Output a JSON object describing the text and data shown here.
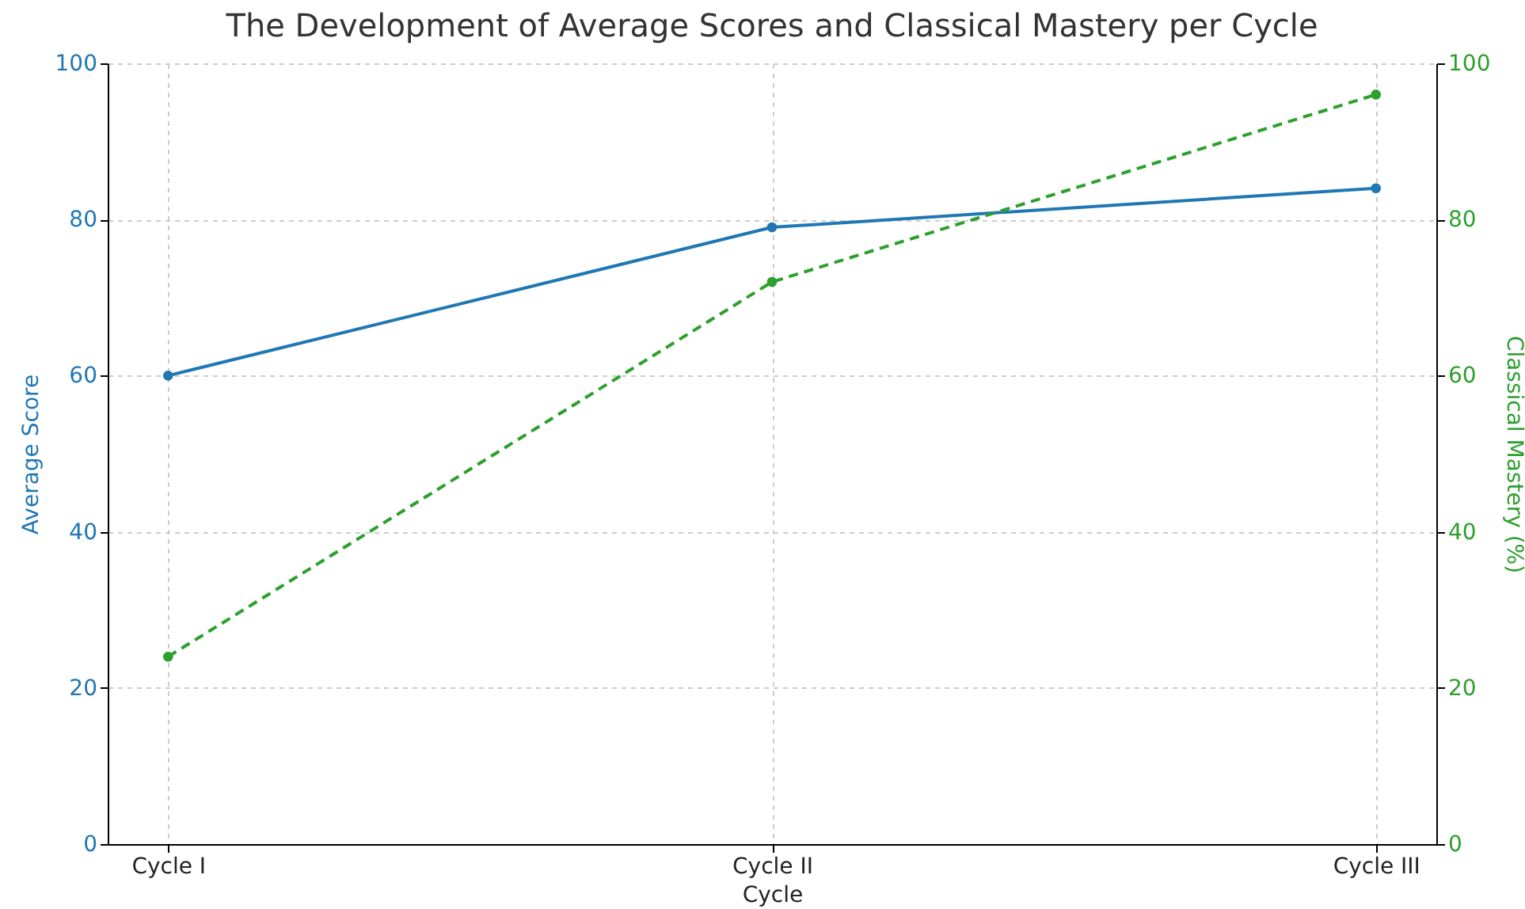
{
  "chart_data": {
    "type": "line",
    "title": "The Development of Average Scores and Classical Mastery per Cycle",
    "xlabel": "Cycle",
    "ylabel": "Average Score",
    "y2label": "Classical Mastery (%)",
    "categories": [
      "Cycle I",
      "Cycle II",
      "Cycle III"
    ],
    "series": [
      {
        "color": "#1f77b4",
        "values": [
          60,
          79,
          84
        ],
        "marker": "circle",
        "line_style": "solid"
      },
      {
        "color": "#2ca02c",
        "values": [
          24,
          72,
          96
        ],
        "marker": "circle",
        "line_style": "dashed",
        "axis": "y2"
      }
    ],
    "ylim": [
      0,
      100
    ],
    "yticks": [
      0,
      20,
      40,
      60,
      80,
      100
    ],
    "y2lim": [
      0,
      100
    ],
    "y2ticks": [
      0,
      20,
      40,
      60,
      80,
      100
    ],
    "grid": true
  }
}
